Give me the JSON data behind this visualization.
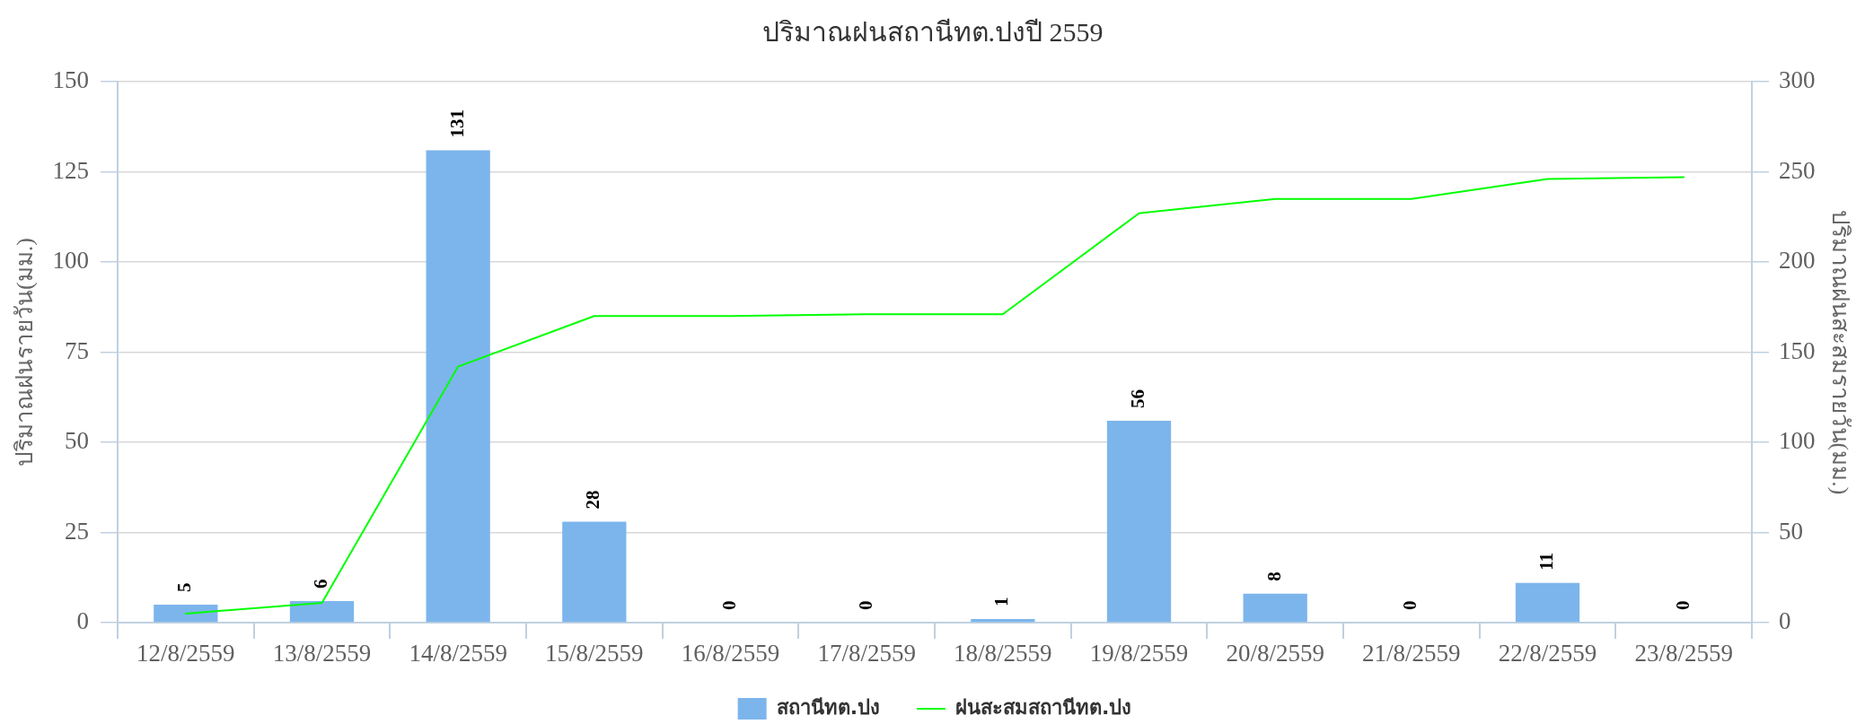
{
  "chart_data": {
    "type": "bar",
    "title": "ปริมาณฝนสถานีทต.ปงปี 2559",
    "ylabel": "ปริมาณฝนรายวัน(มม.)",
    "y2label": "ปริมาณฝนสะสมรายวัน(มม.)",
    "categories": [
      "12/8/2559",
      "13/8/2559",
      "14/8/2559",
      "15/8/2559",
      "16/8/2559",
      "17/8/2559",
      "18/8/2559",
      "19/8/2559",
      "20/8/2559",
      "21/8/2559",
      "22/8/2559",
      "23/8/2559"
    ],
    "series": [
      {
        "name": "สถานีทต.ปง",
        "color": "#7cb5ec",
        "values": [
          5,
          6,
          131,
          28,
          0,
          0,
          1,
          56,
          8,
          0,
          11,
          0
        ],
        "value_labels": [
          "5",
          "6",
          "131",
          "28",
          "0",
          "0",
          "1",
          "56",
          "8",
          "0",
          "11",
          "0"
        ]
      },
      {
        "name": "ฝนสะสมสถานีทต.ปง",
        "type": "line",
        "axis": "y2",
        "color": "#00ff00",
        "values": [
          5,
          11,
          142,
          170,
          170,
          171,
          171,
          227,
          235,
          235,
          246,
          247
        ]
      }
    ],
    "ylim": [
      0,
      150
    ],
    "yticks": [
      0,
      25,
      50,
      75,
      100,
      125,
      150
    ],
    "y2lim": [
      0,
      300
    ],
    "y2ticks": [
      0,
      50,
      100,
      150,
      200,
      250,
      300
    ],
    "grid": "y",
    "legend": "bottom",
    "marker": "none"
  }
}
